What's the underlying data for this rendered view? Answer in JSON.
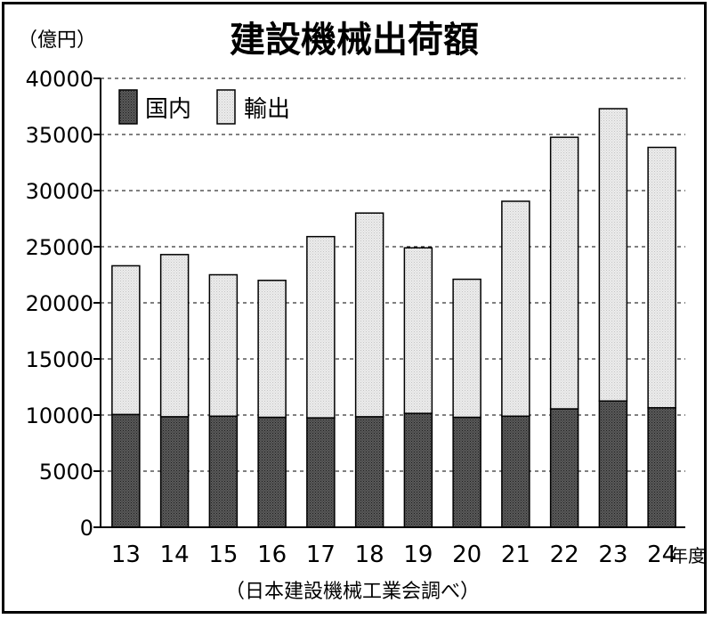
{
  "chart_data": {
    "type": "bar",
    "stacked": true,
    "title": "建設機械出荷額",
    "unit_label": "（億円）",
    "x_suffix": "年度",
    "source": "（日本建設機械工業会調べ）",
    "categories": [
      "13",
      "14",
      "15",
      "16",
      "17",
      "18",
      "19",
      "20",
      "21",
      "22",
      "23",
      "24"
    ],
    "series": [
      {
        "name": "国内",
        "values": [
          10050,
          9850,
          9900,
          9800,
          9750,
          9850,
          10150,
          9800,
          9900,
          10550,
          11250,
          10650
        ]
      },
      {
        "name": "輸出",
        "values": [
          13250,
          14450,
          12600,
          12200,
          16150,
          18150,
          14750,
          12300,
          19150,
          24200,
          26050,
          23200
        ]
      }
    ],
    "y_ticks": [
      0,
      5000,
      10000,
      15000,
      20000,
      25000,
      30000,
      35000,
      40000
    ],
    "ylim": [
      0,
      40000
    ],
    "grid": true,
    "grid_style": "dashed",
    "legend_position": "top-left",
    "colors": {
      "domestic": "#4a4a4a",
      "export": "#e0e0e0",
      "outline": "#000000"
    }
  }
}
